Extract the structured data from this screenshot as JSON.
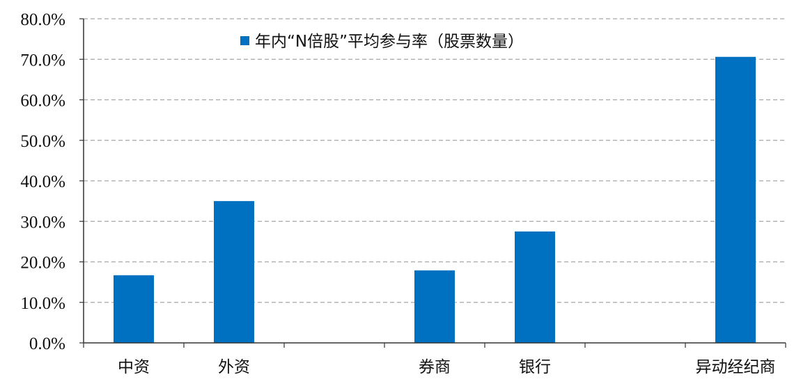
{
  "chart_data": {
    "type": "bar",
    "categories": [
      "中资",
      "外资",
      "",
      "券商",
      "银行",
      "",
      "异动经纪商"
    ],
    "series": [
      {
        "name": "年内“N倍股”平均参与率（股票数量）",
        "values": [
          16.7,
          35.0,
          null,
          17.9,
          27.5,
          null,
          70.6
        ],
        "color": "#0070C0"
      }
    ],
    "ylim": [
      0,
      80
    ],
    "yticks": [
      "0.0%",
      "10.0%",
      "20.0%",
      "30.0%",
      "40.0%",
      "50.0%",
      "60.0%",
      "70.0%",
      "80.0%"
    ],
    "grid": true,
    "legend": "top-center"
  }
}
